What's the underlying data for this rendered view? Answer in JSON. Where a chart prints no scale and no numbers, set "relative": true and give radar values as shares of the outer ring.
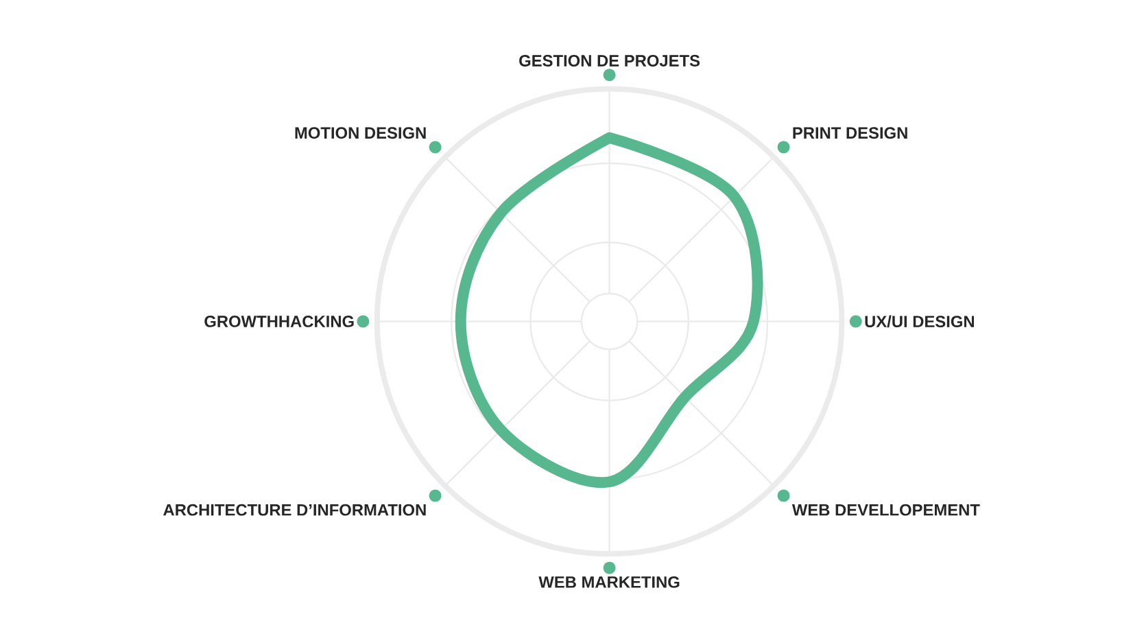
{
  "chart_data": {
    "type": "radar",
    "relative": true,
    "grid": true,
    "categories": [
      "GESTION DE PROJETS",
      "PRINT DESIGN",
      "UX/UI DESIGN",
      "WEB DEVELLOPEMENT",
      "WEB MARKETING",
      "ARCHITECTURE D’INFORMATION",
      "GROWTHHACKING",
      "MOTION DESIGN"
    ],
    "series": [
      {
        "color": "#57b88f",
        "values": [
          0.79,
          0.76,
          0.62,
          0.46,
          0.69,
          0.66,
          0.64,
          0.66
        ]
      }
    ]
  }
}
